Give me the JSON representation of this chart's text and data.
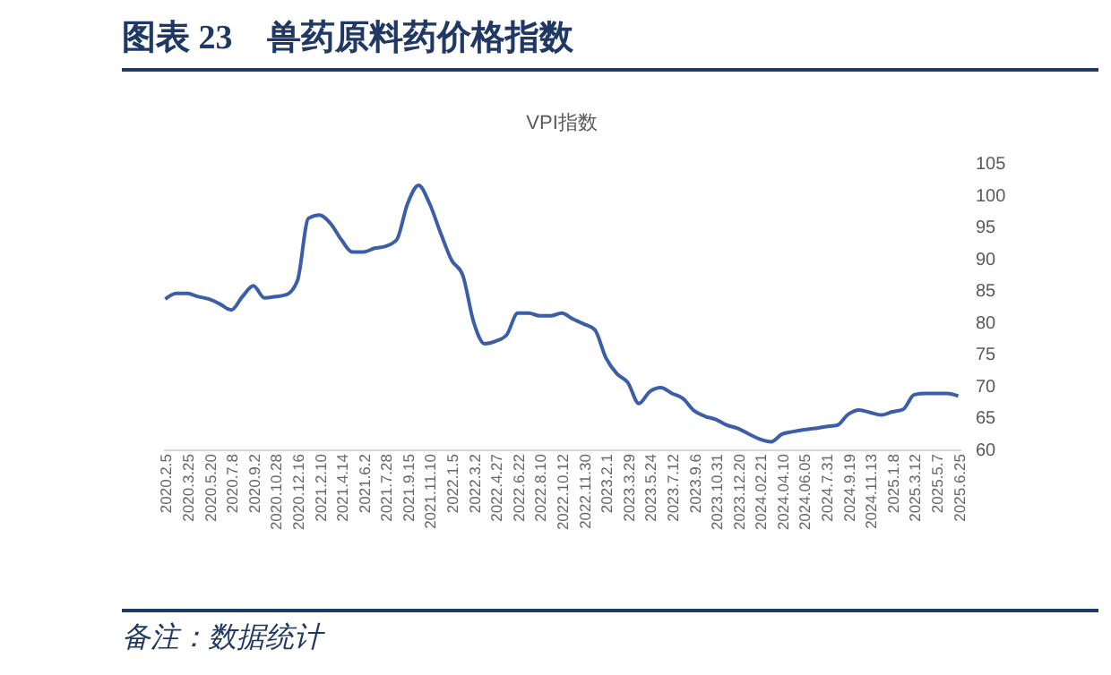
{
  "chart_data": {
    "type": "line",
    "title": "图表 23　兽药原料药价格指数",
    "subtitle": "VPI指数",
    "categories": [
      "2020.2.5",
      null,
      "2020.3.25",
      null,
      "2020.5.20",
      null,
      "2020.7.8",
      null,
      "2020.9.2",
      null,
      "2020.10.28",
      null,
      "2020.12.16",
      null,
      "2021.2.10",
      null,
      "2021.4.14",
      null,
      "2021.6.2",
      null,
      "2021.7.28",
      null,
      "2021.9.15",
      null,
      "2021.11.10",
      null,
      "2022.1.5",
      null,
      "2022.3.2",
      null,
      "2022.4.27",
      null,
      "2022.6.22",
      null,
      "2022.8.10",
      null,
      "2022.10.12",
      null,
      "2022.11.30",
      null,
      "2023.2.1",
      null,
      "2023.3.29",
      null,
      "2023.5.24",
      null,
      "2023.7.12",
      null,
      "2023.9.6",
      null,
      "2023.10.31",
      null,
      "2023.12.20",
      null,
      "2024.02.21",
      null,
      "2024.04.10",
      null,
      "2024.06.05",
      null,
      "2024.7.31",
      null,
      "2024.9.19",
      null,
      "2024.11.13",
      null,
      "2025.1.8",
      null,
      "2025.3.12",
      null,
      "2025.5.7",
      null,
      "2025.6.25"
    ],
    "series": [
      {
        "color": "#3b5ea6",
        "values": [
          83.6,
          84.5,
          84.5,
          84,
          83.6,
          82.8,
          81.9,
          84,
          85.7,
          83.8,
          84,
          84.3,
          86.5,
          96.3,
          96.8,
          95.5,
          92.9,
          91,
          91,
          91.6,
          91.9,
          92.9,
          98.6,
          101.5,
          98.6,
          94,
          89.7,
          87.4,
          80,
          76.6,
          77,
          78,
          81.4,
          81.4,
          81,
          81,
          81.4,
          80.5,
          79.7,
          78.8,
          74.4,
          71.9,
          70.5,
          67.2,
          69.1,
          69.7,
          68.8,
          68,
          66.1,
          65.2,
          64.7,
          63.8,
          63.3,
          62.4,
          61.6,
          61.2,
          62.4,
          62.8,
          63.1,
          63.3,
          63.6,
          63.8,
          65.5,
          66.2,
          65.8,
          65.4,
          65.9,
          66.3,
          68.6,
          68.8,
          68.8,
          68.8,
          68.4
        ]
      }
    ],
    "ylim": [
      60,
      105
    ],
    "yticks": [
      60,
      65,
      70,
      75,
      80,
      85,
      90,
      95,
      100,
      105
    ],
    "grid": false,
    "annotations": [
      "备注：数据统计"
    ]
  }
}
